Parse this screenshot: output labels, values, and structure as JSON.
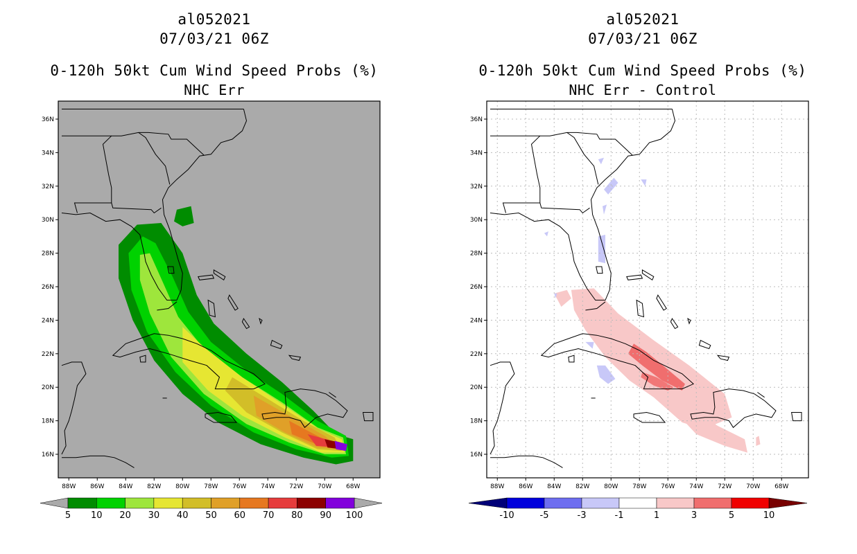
{
  "left": {
    "title_storm": "al052021",
    "title_time": "07/03/21 06Z",
    "title_product": "0-120h 50kt Cum Wind Speed Probs (%)",
    "title_subtitle": "NHC Err",
    "colorbar": {
      "labels": [
        "5",
        "10",
        "20",
        "30",
        "40",
        "50",
        "60",
        "70",
        "80",
        "90",
        "100"
      ],
      "colors": [
        "#008c00",
        "#00d200",
        "#9ee63c",
        "#e6e632",
        "#d2be28",
        "#e0a028",
        "#e67820",
        "#e63c3c",
        "#8c0000",
        "#8200dc"
      ],
      "under_color": "#aaaaaa",
      "over_color": "#aaaaaa"
    },
    "background": "#aaaaaa"
  },
  "right": {
    "title_storm": "al052021",
    "title_time": "07/03/21 06Z",
    "title_product": "0-120h 50kt Cum Wind Speed Probs (%)",
    "title_subtitle": "NHC Err - Control",
    "colorbar": {
      "labels": [
        "-10",
        "-5",
        "-3",
        "-1",
        "1",
        "3",
        "5",
        "10"
      ],
      "colors": [
        "#0000dc",
        "#6e6ef0",
        "#c8c8f8",
        "#ffffff",
        "#f8c8c8",
        "#f06e6e",
        "#f00000"
      ],
      "under_color": "#000078",
      "over_color": "#780000"
    },
    "background": "#ffffff"
  },
  "axes": {
    "lat_labels": [
      "36N",
      "34N",
      "32N",
      "30N",
      "28N",
      "26N",
      "24N",
      "22N",
      "20N",
      "18N",
      "16N"
    ],
    "lon_labels": [
      "88W",
      "86W",
      "84W",
      "82W",
      "80W",
      "78W",
      "76W",
      "74W",
      "72W",
      "70W",
      "68W"
    ]
  }
}
